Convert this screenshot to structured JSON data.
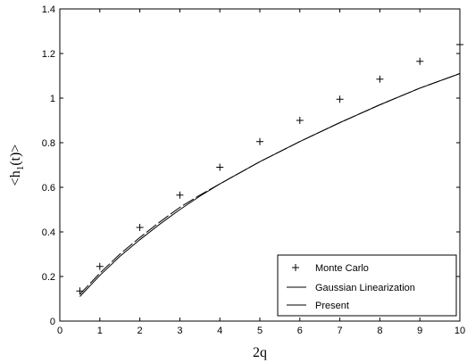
{
  "chart_data": {
    "type": "scatter",
    "title": "",
    "xlabel": "2q",
    "ylabel": {
      "prefix": "<h",
      "subscript": "1",
      "suffix": "(t)>"
    },
    "xlim": [
      0,
      10
    ],
    "ylim": [
      0,
      1.4
    ],
    "xticks": [
      "0",
      "1",
      "2",
      "3",
      "4",
      "5",
      "6",
      "7",
      "8",
      "9",
      "10"
    ],
    "yticks": [
      "0",
      "0.2",
      "0.4",
      "0.6",
      "0.8",
      "1",
      "1.2",
      "1.4"
    ],
    "grid": false,
    "legend_position": "bottom-right",
    "series": [
      {
        "name": "Monte Carlo",
        "style": "plus-markers",
        "x": [
          0.5,
          1,
          2,
          3,
          4,
          5,
          6,
          7,
          8,
          9,
          10
        ],
        "y": [
          0.135,
          0.245,
          0.42,
          0.565,
          0.69,
          0.805,
          0.9,
          0.995,
          1.085,
          1.165,
          1.24
        ]
      },
      {
        "name": "Gaussian Linearization",
        "style": "dashed-line",
        "x": [
          0.5,
          1,
          1.5,
          2,
          2.5,
          3,
          3.5,
          4,
          5,
          6,
          7,
          8,
          9,
          10
        ],
        "y": [
          0.12,
          0.215,
          0.3,
          0.375,
          0.445,
          0.51,
          0.565,
          0.615,
          0.715,
          0.805,
          0.89,
          0.97,
          1.045,
          1.11
        ]
      },
      {
        "name": "Present",
        "style": "solid-line",
        "x": [
          0.5,
          1,
          1.5,
          2,
          2.5,
          3,
          3.5,
          4,
          5,
          6,
          7,
          8,
          9,
          10
        ],
        "y": [
          0.11,
          0.205,
          0.29,
          0.365,
          0.435,
          0.5,
          0.56,
          0.615,
          0.715,
          0.805,
          0.89,
          0.97,
          1.045,
          1.11
        ]
      }
    ]
  }
}
